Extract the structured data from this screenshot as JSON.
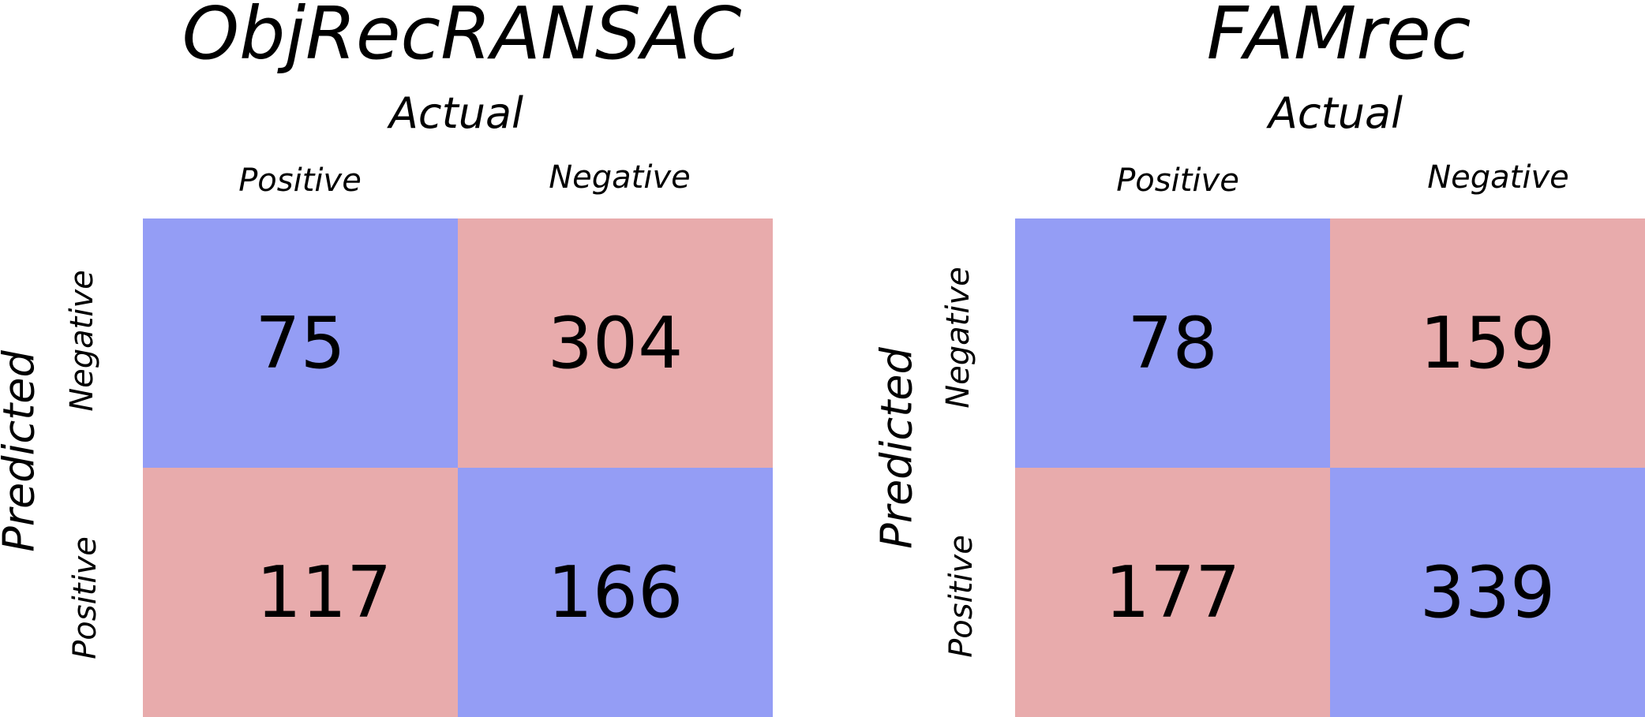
{
  "colors": {
    "diagonal_like": "#949df5",
    "off_diagonal_like": "#e8abac"
  },
  "chart_data": [
    {
      "type": "heatmap",
      "title": "ObjRecRANSAC",
      "xlabel": "Actual",
      "ylabel": "Predicted",
      "x_categories": [
        "Positive",
        "Negative"
      ],
      "y_categories": [
        "Negative",
        "Positive"
      ],
      "matrix": [
        [
          75,
          304
        ],
        [
          117,
          166
        ]
      ],
      "cell_colors": [
        [
          "#949df5",
          "#e8abac"
        ],
        [
          "#e8abac",
          "#949df5"
        ]
      ]
    },
    {
      "type": "heatmap",
      "title": "FAMrec",
      "xlabel": "Actual",
      "ylabel": "Predicted",
      "x_categories": [
        "Positive",
        "Negative"
      ],
      "y_categories": [
        "Negative",
        "Positive"
      ],
      "matrix": [
        [
          78,
          159
        ],
        [
          177,
          339
        ]
      ],
      "cell_colors": [
        [
          "#949df5",
          "#e8abac"
        ],
        [
          "#e8abac",
          "#949df5"
        ]
      ]
    }
  ]
}
